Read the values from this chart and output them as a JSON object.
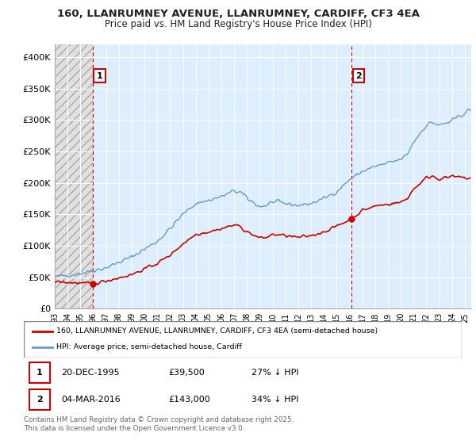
{
  "title_line1": "160, LLANRUMNEY AVENUE, LLANRUMNEY, CARDIFF, CF3 4EA",
  "title_line2": "Price paid vs. HM Land Registry's House Price Index (HPI)",
  "bg_color": "#ffffff",
  "plot_bg_color": "#ddeeff",
  "hatch_bg_color": "#e8e8e8",
  "grid_color": "#ffffff",
  "red_color": "#cc0000",
  "blue_color": "#6699cc",
  "point1_year": 1995.97,
  "point1_price": 39500,
  "point2_year": 2016.17,
  "point2_price": 143000,
  "ylim": [
    0,
    420000
  ],
  "yticks": [
    0,
    50000,
    100000,
    150000,
    200000,
    250000,
    300000,
    350000,
    400000
  ],
  "ytick_labels": [
    "£0",
    "£50K",
    "£100K",
    "£150K",
    "£200K",
    "£250K",
    "£300K",
    "£350K",
    "£400K"
  ],
  "legend_label_red": "160, LLANRUMNEY AVENUE, LLANRUMNEY, CARDIFF, CF3 4EA (semi-detached house)",
  "legend_label_blue": "HPI: Average price, semi-detached house, Cardiff",
  "annotation1_label": "1",
  "annotation2_label": "2",
  "table_row1": [
    "1",
    "20-DEC-1995",
    "£39,500",
    "27% ↓ HPI"
  ],
  "table_row2": [
    "2",
    "04-MAR-2016",
    "£143,000",
    "34% ↓ HPI"
  ],
  "footer": "Contains HM Land Registry data © Crown copyright and database right 2025.\nThis data is licensed under the Open Government Licence v3.0.",
  "xlim_start": 1993.0,
  "xlim_end": 2025.5
}
